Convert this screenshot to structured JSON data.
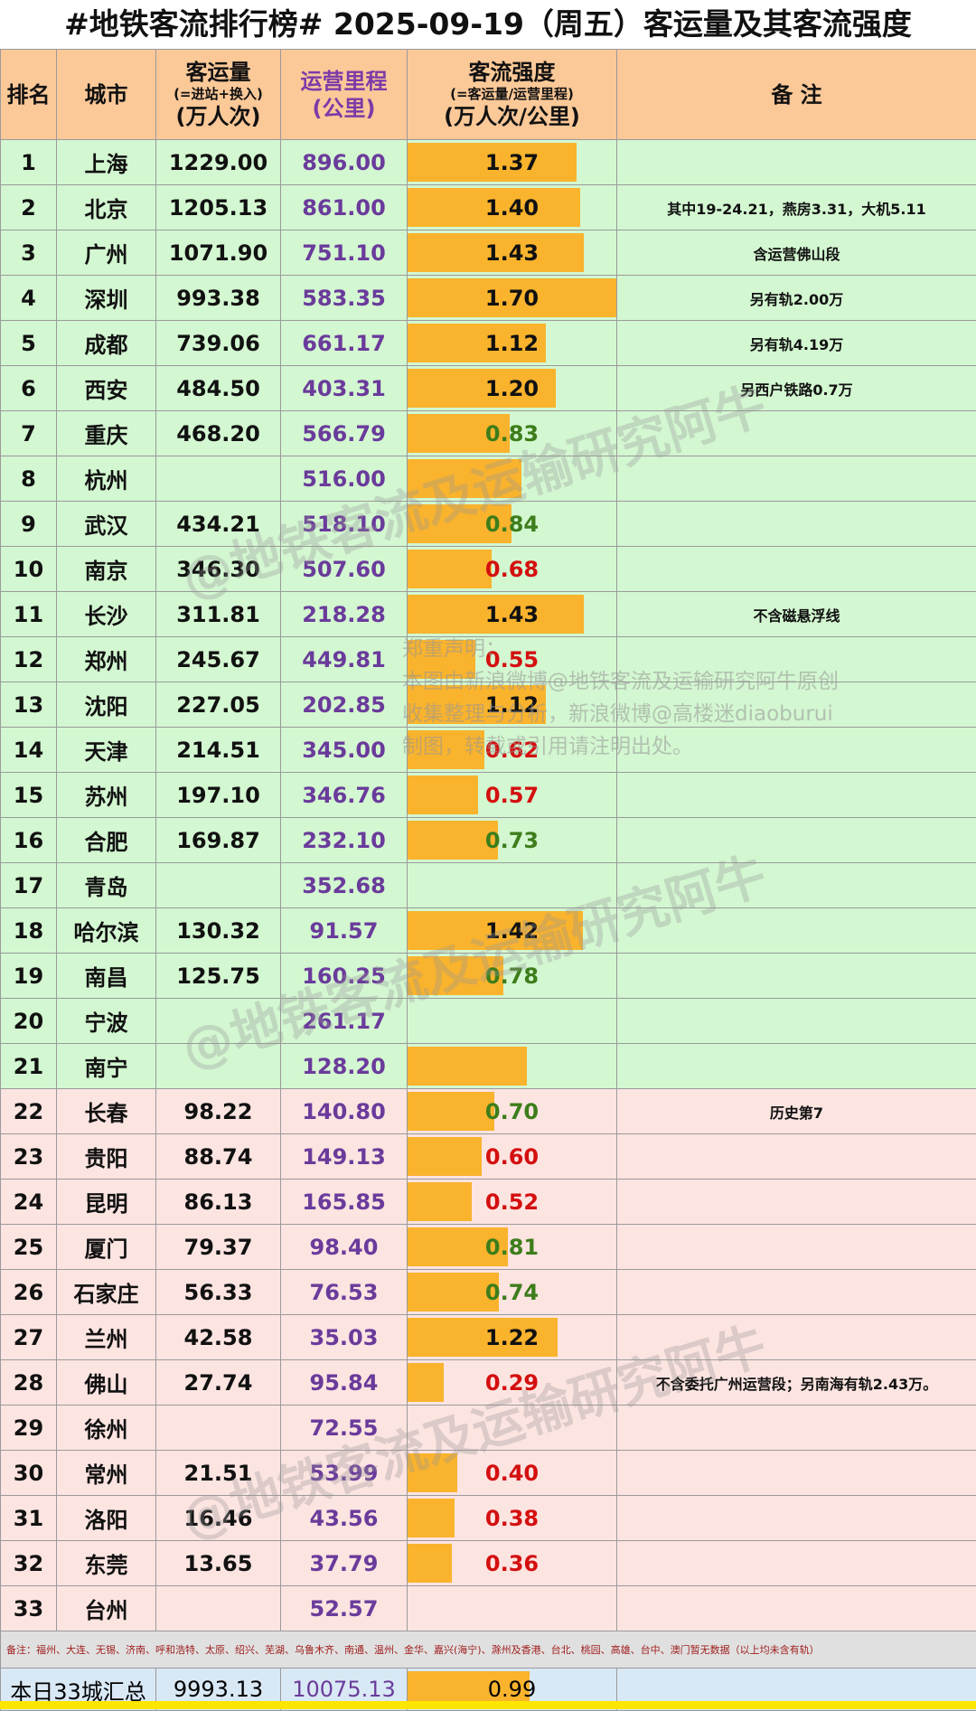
{
  "title": "#地铁客流排行榜# 2025-09-19（周五）客运量及其客流强度",
  "headers": {
    "rank": "排名",
    "city": "城市",
    "volume": {
      "main": "客运量",
      "sub": "(=进站+换入)",
      "unit": "(万人次)"
    },
    "mileage": {
      "main": "运营里程",
      "unit": "(公里)"
    },
    "intensity": {
      "main": "客流强度",
      "sub": "(=客运量/运营里程)",
      "unit": "(万人次/公里)"
    },
    "note": "备  注"
  },
  "max_intensity": 1.7,
  "rows": [
    {
      "rank": "1",
      "city": "上海",
      "volume": "1229.00",
      "mileage": "896.00",
      "intensity": "1.37",
      "bar": 1.37,
      "color": "black",
      "note": "",
      "group": "g"
    },
    {
      "rank": "2",
      "city": "北京",
      "volume": "1205.13",
      "mileage": "861.00",
      "intensity": "1.40",
      "bar": 1.4,
      "color": "black",
      "note": "其中19-24.21，燕房3.31，大机5.11",
      "group": "g"
    },
    {
      "rank": "3",
      "city": "广州",
      "volume": "1071.90",
      "mileage": "751.10",
      "intensity": "1.43",
      "bar": 1.43,
      "color": "black",
      "note": "含运营佛山段",
      "group": "g"
    },
    {
      "rank": "4",
      "city": "深圳",
      "volume": "993.38",
      "mileage": "583.35",
      "intensity": "1.70",
      "bar": 1.7,
      "color": "black",
      "note": "另有轨2.00万",
      "group": "g"
    },
    {
      "rank": "5",
      "city": "成都",
      "volume": "739.06",
      "mileage": "661.17",
      "intensity": "1.12",
      "bar": 1.12,
      "color": "black",
      "note": "另有轨4.19万",
      "group": "g"
    },
    {
      "rank": "6",
      "city": "西安",
      "volume": "484.50",
      "mileage": "403.31",
      "intensity": "1.20",
      "bar": 1.2,
      "color": "black",
      "note": "另西户铁路0.7万",
      "group": "g"
    },
    {
      "rank": "7",
      "city": "重庆",
      "volume": "468.20",
      "mileage": "566.79",
      "intensity": "0.83",
      "bar": 0.83,
      "color": "green",
      "note": "",
      "group": "g"
    },
    {
      "rank": "8",
      "city": "杭州",
      "volume": "",
      "mileage": "516.00",
      "intensity": "",
      "bar": 0.92,
      "color": "black",
      "note": "",
      "group": "g"
    },
    {
      "rank": "9",
      "city": "武汉",
      "volume": "434.21",
      "mileage": "518.10",
      "intensity": "0.84",
      "bar": 0.84,
      "color": "green",
      "note": "",
      "group": "g"
    },
    {
      "rank": "10",
      "city": "南京",
      "volume": "346.30",
      "mileage": "507.60",
      "intensity": "0.68",
      "bar": 0.68,
      "color": "red",
      "note": "",
      "group": "g"
    },
    {
      "rank": "11",
      "city": "长沙",
      "volume": "311.81",
      "mileage": "218.28",
      "intensity": "1.43",
      "bar": 1.43,
      "color": "black",
      "note": "不含磁悬浮线",
      "group": "g"
    },
    {
      "rank": "12",
      "city": "郑州",
      "volume": "245.67",
      "mileage": "449.81",
      "intensity": "0.55",
      "bar": 0.55,
      "color": "red",
      "note": "",
      "group": "g"
    },
    {
      "rank": "13",
      "city": "沈阳",
      "volume": "227.05",
      "mileage": "202.85",
      "intensity": "1.12",
      "bar": 1.12,
      "color": "black",
      "note": "",
      "group": "g"
    },
    {
      "rank": "14",
      "city": "天津",
      "volume": "214.51",
      "mileage": "345.00",
      "intensity": "0.62",
      "bar": 0.62,
      "color": "red",
      "note": "",
      "group": "g"
    },
    {
      "rank": "15",
      "city": "苏州",
      "volume": "197.10",
      "mileage": "346.76",
      "intensity": "0.57",
      "bar": 0.57,
      "color": "red",
      "note": "",
      "group": "g"
    },
    {
      "rank": "16",
      "city": "合肥",
      "volume": "169.87",
      "mileage": "232.10",
      "intensity": "0.73",
      "bar": 0.73,
      "color": "green",
      "note": "",
      "group": "g"
    },
    {
      "rank": "17",
      "city": "青岛",
      "volume": "",
      "mileage": "352.68",
      "intensity": "",
      "bar": 0,
      "color": "black",
      "note": "",
      "group": "g"
    },
    {
      "rank": "18",
      "city": "哈尔滨",
      "volume": "130.32",
      "mileage": "91.57",
      "intensity": "1.42",
      "bar": 1.42,
      "color": "black",
      "note": "",
      "group": "g"
    },
    {
      "rank": "19",
      "city": "南昌",
      "volume": "125.75",
      "mileage": "160.25",
      "intensity": "0.78",
      "bar": 0.78,
      "color": "green",
      "note": "",
      "group": "g"
    },
    {
      "rank": "20",
      "city": "宁波",
      "volume": "",
      "mileage": "261.17",
      "intensity": "",
      "bar": 0,
      "color": "black",
      "note": "",
      "group": "g"
    },
    {
      "rank": "21",
      "city": "南宁",
      "volume": "",
      "mileage": "128.20",
      "intensity": "",
      "bar": 0.97,
      "color": "black",
      "note": "",
      "group": "g"
    },
    {
      "rank": "22",
      "city": "长春",
      "volume": "98.22",
      "mileage": "140.80",
      "intensity": "0.70",
      "bar": 0.7,
      "color": "green",
      "note": "历史第7",
      "group": "p"
    },
    {
      "rank": "23",
      "city": "贵阳",
      "volume": "88.74",
      "mileage": "149.13",
      "intensity": "0.60",
      "bar": 0.6,
      "color": "red",
      "note": "",
      "group": "p"
    },
    {
      "rank": "24",
      "city": "昆明",
      "volume": "86.13",
      "mileage": "165.85",
      "intensity": "0.52",
      "bar": 0.52,
      "color": "red",
      "note": "",
      "group": "p"
    },
    {
      "rank": "25",
      "city": "厦门",
      "volume": "79.37",
      "mileage": "98.40",
      "intensity": "0.81",
      "bar": 0.81,
      "color": "green",
      "note": "",
      "group": "p"
    },
    {
      "rank": "26",
      "city": "石家庄",
      "volume": "56.33",
      "mileage": "76.53",
      "intensity": "0.74",
      "bar": 0.74,
      "color": "green",
      "note": "",
      "group": "p"
    },
    {
      "rank": "27",
      "city": "兰州",
      "volume": "42.58",
      "mileage": "35.03",
      "intensity": "1.22",
      "bar": 1.22,
      "color": "black",
      "note": "",
      "group": "p"
    },
    {
      "rank": "28",
      "city": "佛山",
      "volume": "27.74",
      "mileage": "95.84",
      "intensity": "0.29",
      "bar": 0.29,
      "color": "red",
      "note": "不含委托广州运营段；另南海有轨2.43万。",
      "group": "p"
    },
    {
      "rank": "29",
      "city": "徐州",
      "volume": "",
      "mileage": "72.55",
      "intensity": "",
      "bar": 0,
      "color": "black",
      "note": "",
      "group": "p"
    },
    {
      "rank": "30",
      "city": "常州",
      "volume": "21.51",
      "mileage": "53.99",
      "intensity": "0.40",
      "bar": 0.4,
      "color": "red",
      "note": "",
      "group": "p"
    },
    {
      "rank": "31",
      "city": "洛阳",
      "volume": "16.46",
      "mileage": "43.56",
      "intensity": "0.38",
      "bar": 0.38,
      "color": "red",
      "note": "",
      "group": "p"
    },
    {
      "rank": "32",
      "city": "东莞",
      "volume": "13.65",
      "mileage": "37.79",
      "intensity": "0.36",
      "bar": 0.36,
      "color": "red",
      "note": "",
      "group": "p"
    },
    {
      "rank": "33",
      "city": "台州",
      "volume": "",
      "mileage": "52.57",
      "intensity": "",
      "bar": 0,
      "color": "black",
      "note": "",
      "group": "p"
    }
  ],
  "footnote": "备注：福州、大连、无锡、济南、呼和浩特、太原、绍兴、芜湖、乌鲁木齐、南通、温州、金华、嘉兴(海宁)、滁州及香港、台北、桃园、高雄、台中、澳门暂无数据（以上均未含有轨）",
  "summary": {
    "label": "本日33城汇总",
    "volume": "9993.13",
    "mileage": "10075.13",
    "intensity": "0.99",
    "bar": 0.99
  },
  "watermark": "@地铁客流及运输研究阿牛",
  "disclaimer": [
    "郑重声明：",
    "本图由新浪微博@地铁客流及运输研究阿牛原创",
    "收集整理与分析，新浪微博@高楼迷diaoburui",
    "制图，转载或引用请注明出处。"
  ]
}
